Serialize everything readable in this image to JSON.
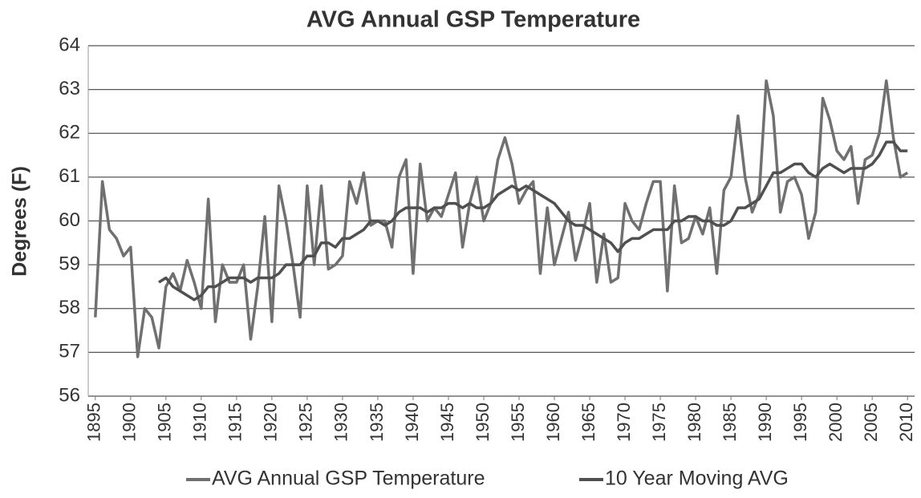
{
  "chart_data": {
    "type": "line",
    "title": "AVG Annual GSP Temperature",
    "y_label": "Degrees (F)",
    "x": [
      1895,
      1896,
      1897,
      1898,
      1899,
      1900,
      1901,
      1902,
      1903,
      1904,
      1905,
      1906,
      1907,
      1908,
      1909,
      1910,
      1911,
      1912,
      1913,
      1914,
      1915,
      1916,
      1917,
      1918,
      1919,
      1920,
      1921,
      1922,
      1923,
      1924,
      1925,
      1926,
      1927,
      1928,
      1929,
      1930,
      1931,
      1932,
      1933,
      1934,
      1935,
      1936,
      1937,
      1938,
      1939,
      1940,
      1941,
      1942,
      1943,
      1944,
      1945,
      1946,
      1947,
      1948,
      1949,
      1950,
      1951,
      1952,
      1953,
      1954,
      1955,
      1956,
      1957,
      1958,
      1959,
      1960,
      1961,
      1962,
      1963,
      1964,
      1965,
      1966,
      1967,
      1968,
      1969,
      1970,
      1971,
      1972,
      1973,
      1974,
      1975,
      1976,
      1977,
      1978,
      1979,
      1980,
      1981,
      1982,
      1983,
      1984,
      1985,
      1986,
      1987,
      1988,
      1989,
      1990,
      1991,
      1992,
      1993,
      1994,
      1995,
      1996,
      1997,
      1998,
      1999,
      2000,
      2001,
      2002,
      2003,
      2004,
      2005,
      2006,
      2007,
      2008,
      2009,
      2010
    ],
    "series": [
      {
        "name": "AVG Annual GSP Temperature",
        "color": "#707070",
        "values": [
          57.8,
          60.9,
          59.8,
          59.6,
          59.2,
          59.4,
          56.9,
          58.0,
          57.8,
          57.1,
          58.5,
          58.8,
          58.4,
          59.1,
          58.6,
          58.0,
          60.5,
          57.7,
          59.0,
          58.6,
          58.6,
          59.0,
          57.3,
          58.5,
          60.1,
          57.7,
          60.8,
          60.0,
          59.0,
          57.8,
          60.8,
          59.0,
          60.8,
          58.9,
          59.0,
          59.2,
          60.9,
          60.4,
          61.1,
          59.9,
          60.0,
          60.0,
          59.4,
          61.0,
          61.4,
          58.8,
          61.3,
          60.0,
          60.3,
          60.1,
          60.6,
          61.1,
          59.4,
          60.4,
          61.0,
          60.0,
          60.4,
          61.4,
          61.9,
          61.3,
          60.4,
          60.7,
          60.9,
          58.8,
          60.3,
          59.0,
          59.6,
          60.2,
          59.1,
          59.7,
          60.4,
          58.6,
          59.7,
          58.6,
          58.7,
          60.4,
          60.0,
          59.8,
          60.4,
          60.9,
          60.9,
          58.4,
          60.8,
          59.5,
          59.6,
          60.1,
          59.7,
          60.3,
          58.8,
          60.7,
          61.0,
          62.4,
          61.0,
          60.2,
          60.6,
          63.2,
          62.4,
          60.2,
          60.9,
          61.0,
          60.6,
          59.6,
          60.2,
          62.8,
          62.3,
          61.6,
          61.4,
          61.7,
          60.4,
          61.4,
          61.5,
          62.0,
          63.2,
          61.9,
          61.0,
          61.1
        ]
      },
      {
        "name": "10 Year Moving AVG",
        "color": "#505050",
        "values": [
          null,
          null,
          null,
          null,
          null,
          null,
          null,
          null,
          null,
          58.6,
          58.7,
          58.5,
          58.4,
          58.3,
          58.2,
          58.3,
          58.5,
          58.5,
          58.6,
          58.7,
          58.7,
          58.7,
          58.6,
          58.7,
          58.7,
          58.7,
          58.8,
          59.0,
          59.0,
          59.0,
          59.2,
          59.2,
          59.5,
          59.5,
          59.4,
          59.6,
          59.6,
          59.7,
          59.8,
          60.0,
          60.0,
          59.9,
          60.0,
          60.2,
          60.3,
          60.3,
          60.3,
          60.2,
          60.3,
          60.3,
          60.4,
          60.4,
          60.3,
          60.4,
          60.3,
          60.3,
          60.4,
          60.6,
          60.7,
          60.8,
          60.7,
          60.8,
          60.7,
          60.6,
          60.5,
          60.4,
          60.2,
          60.0,
          59.9,
          59.9,
          59.8,
          59.7,
          59.6,
          59.5,
          59.3,
          59.5,
          59.6,
          59.6,
          59.7,
          59.8,
          59.8,
          59.8,
          60.0,
          60.0,
          60.1,
          60.1,
          60.0,
          60.0,
          59.9,
          59.9,
          60.0,
          60.3,
          60.3,
          60.4,
          60.5,
          60.8,
          61.1,
          61.1,
          61.2,
          61.3,
          61.3,
          61.1,
          61.0,
          61.2,
          61.3,
          61.2,
          61.1,
          61.2,
          61.2,
          61.2,
          61.3,
          61.5,
          61.8,
          61.8,
          61.6,
          61.6
        ]
      }
    ],
    "xlim": [
      1894,
      2011
    ],
    "xticks": [
      1895,
      1900,
      1905,
      1910,
      1915,
      1920,
      1925,
      1930,
      1935,
      1940,
      1945,
      1950,
      1955,
      1960,
      1965,
      1970,
      1975,
      1980,
      1985,
      1990,
      1995,
      2000,
      2005,
      2010
    ],
    "ylim": [
      56,
      64
    ],
    "yticks": [
      56,
      57,
      58,
      59,
      60,
      61,
      62,
      63,
      64
    ],
    "grid": true,
    "legend": "bottom"
  }
}
